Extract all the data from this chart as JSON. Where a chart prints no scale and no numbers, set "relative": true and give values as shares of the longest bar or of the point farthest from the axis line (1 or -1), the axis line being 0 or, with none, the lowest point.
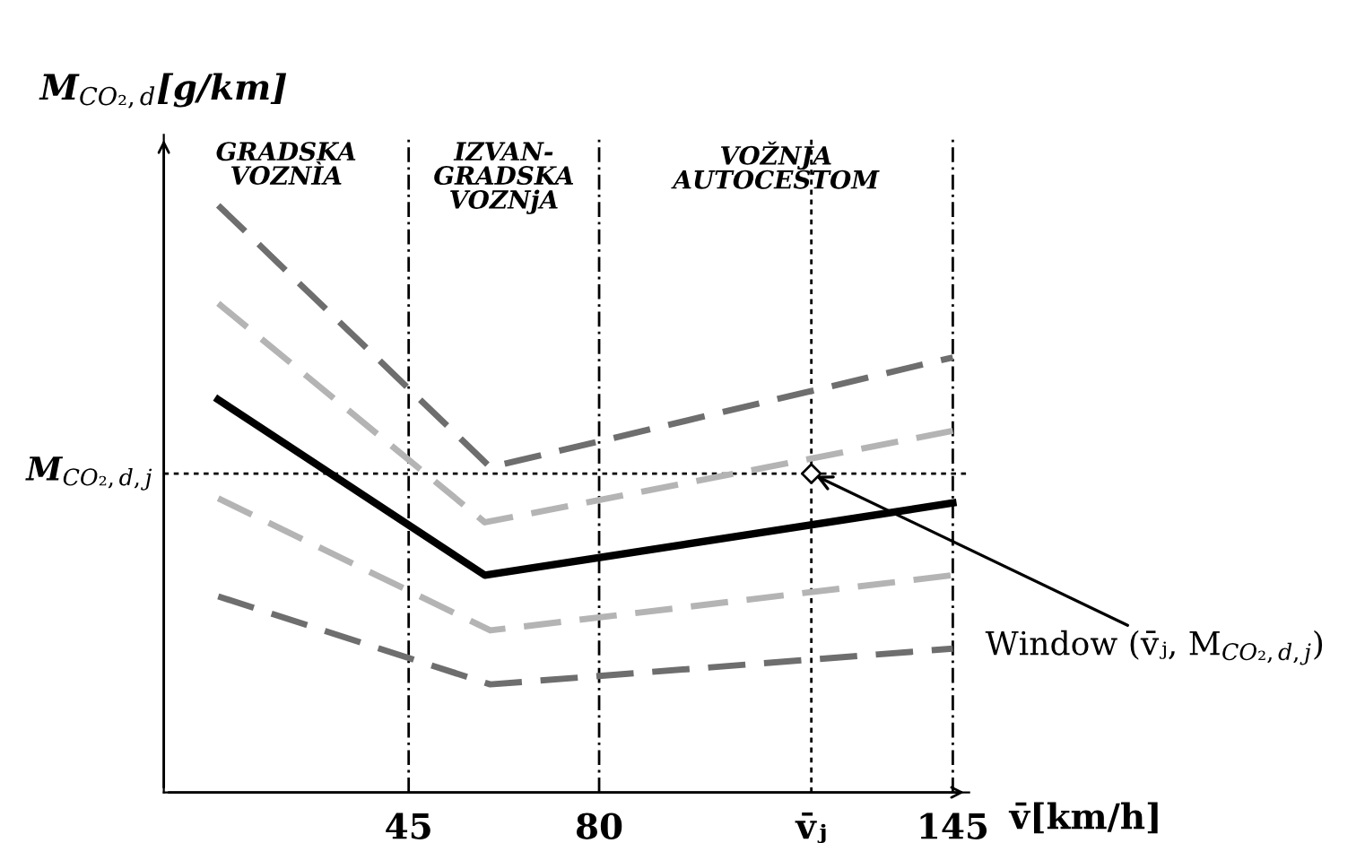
{
  "chart_data": {
    "type": "line",
    "relative": true,
    "ylabel": "M$_{CO₂,d}$[g/km]",
    "xlabel": "v̄[km/h]",
    "xlim": [
      0,
      148
    ],
    "xticks": [
      45,
      80,
      {
        "value": 119,
        "label": "v̄ⱼ"
      },
      145
    ],
    "series": [
      {
        "color": "#6e6e6e",
        "line_style": "dashed",
        "x": [
          10,
          60,
          145
        ],
        "values": [
          1.0,
          0.554,
          0.741
        ]
      },
      {
        "color": "#b4b4b4",
        "line_style": "dashed",
        "x": [
          10,
          59,
          145
        ],
        "values": [
          0.833,
          0.46,
          0.616
        ]
      },
      {
        "color": "#000000",
        "line_style": "solid",
        "x": [
          10,
          59,
          145
        ],
        "values": [
          0.669,
          0.37,
          0.493
        ]
      },
      {
        "color": "#b4b4b4",
        "line_style": "dashed",
        "x": [
          10,
          60,
          145
        ],
        "values": [
          0.501,
          0.276,
          0.37
        ]
      },
      {
        "color": "#6e6e6e",
        "line_style": "dashed",
        "x": [
          10,
          60,
          145
        ],
        "values": [
          0.334,
          0.184,
          0.245
        ]
      },
      {
        "type": "scatter",
        "marker": "diamond",
        "color": "#000000",
        "x": [
          119
        ],
        "values": [
          0.543
        ]
      }
    ],
    "ref_lines": [
      {
        "axis": "x",
        "value": 45,
        "line_style": "dashdot"
      },
      {
        "axis": "x",
        "value": 80,
        "line_style": "dashdot"
      },
      {
        "axis": "x",
        "value": 145,
        "line_style": "dashdot"
      },
      {
        "axis": "x",
        "value": 119,
        "line_style": "dotted"
      },
      {
        "axis": "y",
        "value": 0.543,
        "line_style": "dotted",
        "label": "M$_{CO₂,d,j}$"
      }
    ],
    "annotations": [
      "GRADSKA\nVOZNÌA",
      "IZVAN-\nGRADSKA\nVOZNjA",
      "VOŽNJA\nAUTOCESTOM",
      {
        "text": "Window (v̄ⱼ, M$_{CO₂,d,j}$)",
        "x": 119,
        "y": 0.543
      }
    ],
    "grid": false,
    "legend": false
  }
}
